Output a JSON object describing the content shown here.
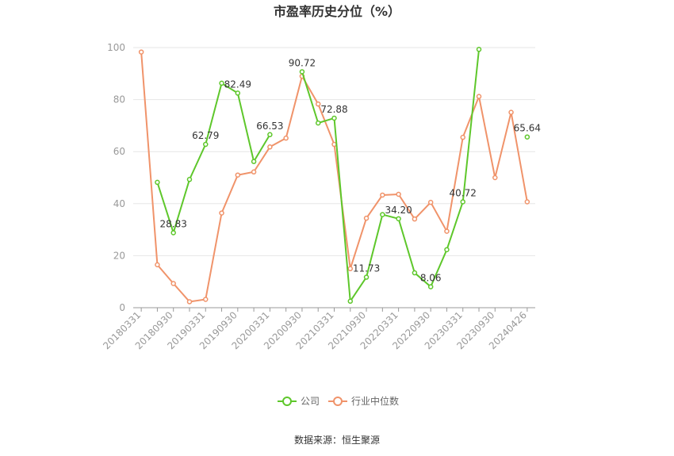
{
  "chart_data": {
    "type": "line",
    "title": "市盈率历史分位（%）",
    "ylim": [
      0,
      100
    ],
    "yticks": [
      "0",
      "20",
      "40",
      "60",
      "80",
      "100"
    ],
    "x": [
      "20180331",
      "20180630",
      "20180930",
      "20181231",
      "20190331",
      "20190630",
      "20190930",
      "20191231",
      "20200331",
      "20200630",
      "20200930",
      "20201231",
      "20210331",
      "20210630",
      "20210930",
      "20211231",
      "20220331",
      "20220630",
      "20220930",
      "20221231",
      "20230331",
      "20230630",
      "20230930",
      "20231231",
      "20240426"
    ],
    "x_tick_labels": [
      "20180331",
      "20180930",
      "20190331",
      "20190930",
      "20200331",
      "20200930",
      "20210331",
      "20210930",
      "20220331",
      "20220930",
      "20230331",
      "20230930",
      "20240426"
    ],
    "series": [
      {
        "name": "公司",
        "color": "#5ec72b",
        "values": [
          null,
          48.2,
          28.83,
          49.3,
          62.79,
          86.3,
          82.49,
          56.2,
          66.53,
          null,
          90.72,
          71.0,
          72.88,
          2.5,
          11.73,
          35.8,
          34.2,
          13.4,
          8.06,
          22.3,
          40.72,
          99.3,
          null,
          null,
          65.64
        ],
        "data_labels": [
          "",
          "",
          "28.83",
          "",
          "62.79",
          "",
          "82.49",
          "",
          "66.53",
          "",
          "90.72",
          "",
          "72.88",
          "",
          "11.73",
          "",
          "34.20",
          "",
          "8.06",
          "",
          "40.72",
          "",
          "",
          "",
          "65.64"
        ]
      },
      {
        "name": "行业中位数",
        "color": "#f0936a",
        "values": [
          98.3,
          16.5,
          9.3,
          2.3,
          3.2,
          36.4,
          51.0,
          52.2,
          61.8,
          65.2,
          89.0,
          78.3,
          62.8,
          15.0,
          34.4,
          43.3,
          43.6,
          34.1,
          40.5,
          29.4,
          65.5,
          81.2,
          50.0,
          75.1,
          40.7
        ]
      }
    ],
    "legend_position": "bottom",
    "grid": true
  },
  "source": "数据来源：恒生聚源"
}
